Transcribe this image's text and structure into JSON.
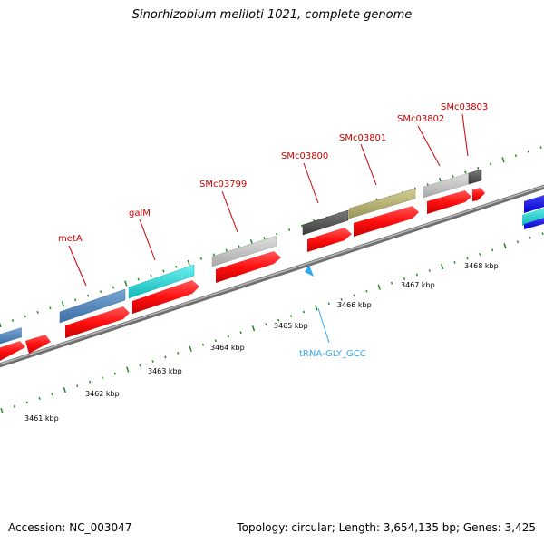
{
  "title": "Sinorhizobium meliloti 1021, complete genome",
  "footer": {
    "accession": "Accession: NC_003047",
    "summary": "Topology: circular; Length: 3,654,135 bp; Genes: 3,425"
  },
  "gene_labels": {
    "metA": "metA",
    "galM": "galM",
    "SMc03799": "SMc03799",
    "SMc03800": "SMc03800",
    "SMc03801": "SMc03801",
    "SMc03802": "SMc03802",
    "SMc03803": "SMc03803"
  },
  "trna_label": "tRNA-GLY_GCC",
  "kbp_labels": {
    "k3461": "3461 kbp",
    "k3462": "3462 kbp",
    "k3463": "3463 kbp",
    "k3464": "3464 kbp",
    "k3465": "3465 kbp",
    "k3466": "3466 kbp",
    "k3467": "3467 kbp",
    "k3468": "3468 kbp"
  },
  "colors": {
    "backbone": "#888888",
    "cds": "#ff1010",
    "tick": "#228822",
    "gene_label": "#cc0000",
    "trna": "#33aaee",
    "cog_blue": "#4a7fb5",
    "cog_cyan": "#1cc8c8",
    "cog_gray_light": "#bdbdbd",
    "cog_gray_dark": "#555555",
    "cog_olive": "#b5b070",
    "cog_bright_blue": "#1a1aee"
  }
}
